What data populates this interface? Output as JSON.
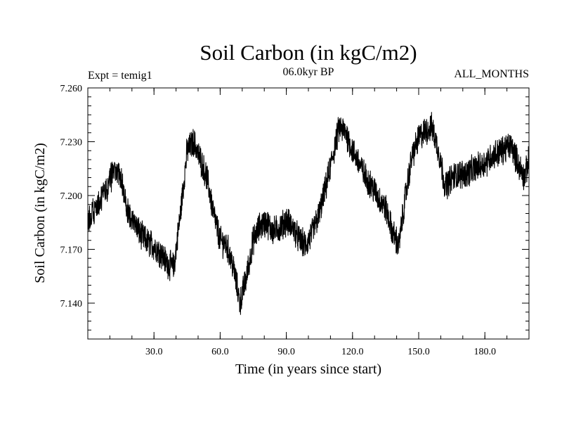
{
  "chart_data": {
    "type": "line",
    "title": "Soil Carbon (in kgC/m2)",
    "left_label": "Expt = temig1",
    "center_label": "06.0kyr BP",
    "right_label": "ALL_MONTHS",
    "xlabel": "Time (in years since start)",
    "ylabel": "Soil Carbon (in kgC/m2)",
    "xlim": [
      0,
      200
    ],
    "ylim": [
      7.12,
      7.26
    ],
    "x_ticks": [
      30,
      60,
      90,
      120,
      150,
      180
    ],
    "x_tick_labels": [
      "30.0",
      "60.0",
      "90.0",
      "120.0",
      "150.0",
      "180.0"
    ],
    "y_ticks": [
      7.14,
      7.17,
      7.2,
      7.23,
      7.26
    ],
    "y_tick_labels": [
      "7.140",
      "7.170",
      "7.200",
      "7.230",
      "7.260"
    ],
    "x_minor_step": 10,
    "y_minor_step": 0.005,
    "grid": false,
    "series": [
      {
        "name": "Soil Carbon",
        "color": "#000000",
        "noise_amplitude": 0.007,
        "samples_per_year": 12,
        "trend": {
          "x": [
            0,
            3,
            6,
            9,
            12,
            15,
            18,
            21,
            24,
            27,
            30,
            33,
            36,
            39,
            42,
            45,
            48,
            51,
            54,
            57,
            60,
            63,
            66,
            69,
            72,
            75,
            78,
            81,
            84,
            87,
            90,
            93,
            96,
            99,
            102,
            105,
            108,
            111,
            114,
            117,
            120,
            123,
            126,
            129,
            132,
            135,
            138,
            141,
            144,
            147,
            150,
            153,
            156,
            159,
            162,
            165,
            168,
            171,
            174,
            177,
            180,
            183,
            186,
            189,
            192,
            195,
            198,
            200
          ],
          "y": [
            7.185,
            7.192,
            7.198,
            7.205,
            7.215,
            7.21,
            7.19,
            7.185,
            7.178,
            7.174,
            7.172,
            7.168,
            7.162,
            7.16,
            7.19,
            7.225,
            7.23,
            7.22,
            7.21,
            7.19,
            7.175,
            7.172,
            7.16,
            7.14,
            7.155,
            7.175,
            7.183,
            7.185,
            7.18,
            7.182,
            7.186,
            7.182,
            7.175,
            7.172,
            7.18,
            7.19,
            7.205,
            7.222,
            7.238,
            7.235,
            7.225,
            7.218,
            7.21,
            7.205,
            7.198,
            7.193,
            7.18,
            7.172,
            7.2,
            7.222,
            7.232,
            7.236,
            7.238,
            7.225,
            7.205,
            7.21,
            7.212,
            7.212,
            7.214,
            7.216,
            7.218,
            7.222,
            7.224,
            7.226,
            7.228,
            7.218,
            7.21,
            7.22
          ]
        }
      }
    ]
  }
}
